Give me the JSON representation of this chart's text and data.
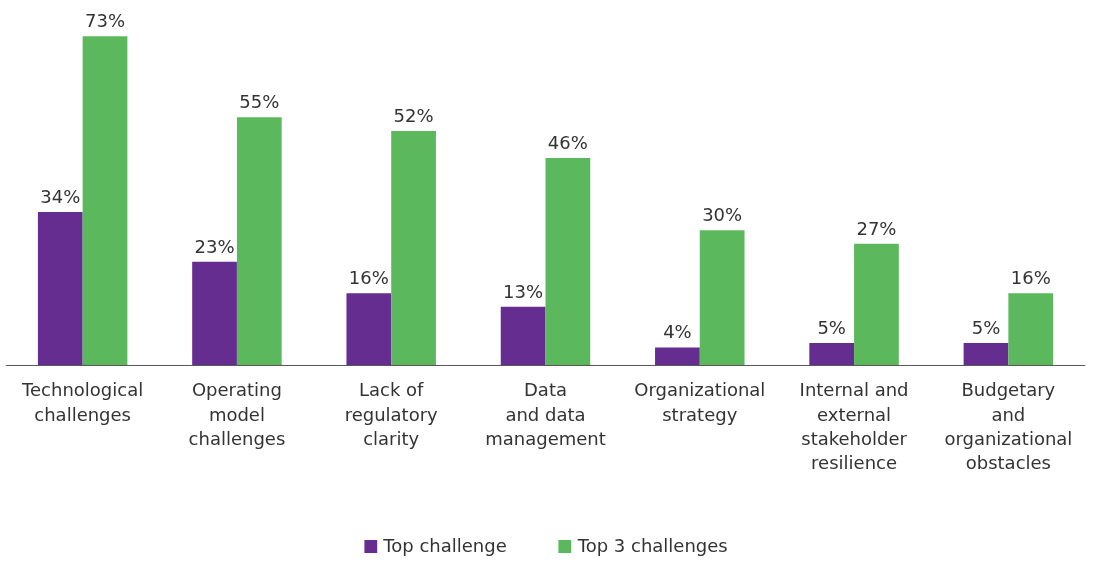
{
  "chart_data": {
    "type": "bar",
    "categories": [
      "Technological\nchallenges",
      "Operating\nmodel\nchallenges",
      "Lack of\nregulatory\nclarity",
      "Data\nand data\nmanagement",
      "Organizational\nstrategy",
      "Internal and\nexternal\nstakeholder\nresilience",
      "Budgetary\nand\norganizational\nobstacles"
    ],
    "series": [
      {
        "name": "Top challenge",
        "color": "#662d91",
        "values": [
          34,
          23,
          16,
          13,
          4,
          5,
          5
        ],
        "value_labels": [
          "34%",
          "23%",
          "16%",
          "13%",
          "4%",
          "5%",
          "5%"
        ]
      },
      {
        "name": "Top 3 challenges",
        "color": "#5cb85c",
        "values": [
          73,
          55,
          52,
          46,
          30,
          27,
          16
        ],
        "value_labels": [
          "73%",
          "55%",
          "52%",
          "46%",
          "30%",
          "27%",
          "16%"
        ]
      }
    ],
    "grid": false,
    "legend": "bottom",
    "tick_labels": "x"
  }
}
